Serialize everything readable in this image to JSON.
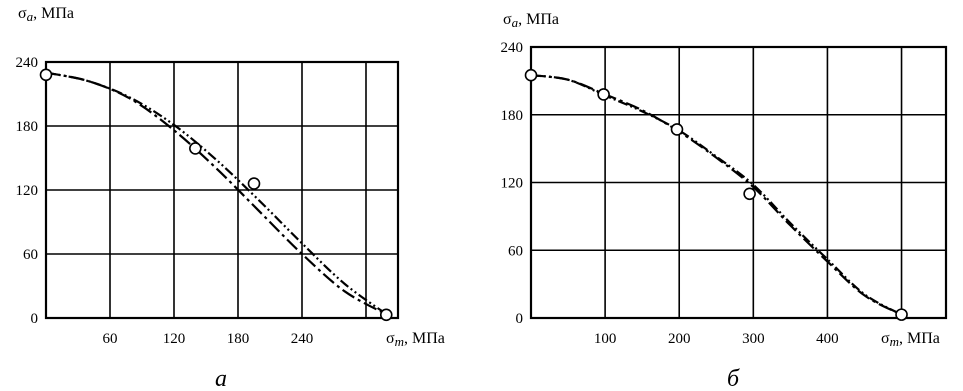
{
  "chart_data": [
    {
      "type": "line",
      "panel_label": "а",
      "ylabel_main": "σ",
      "ylabel_sub": "a",
      "ylabel_unit": ", МПа",
      "xlabel_main": "σ",
      "xlabel_sub": "m",
      "xlabel_unit": ", МПа",
      "xlim": [
        0,
        330
      ],
      "ylim": [
        0,
        240
      ],
      "x_ticks": [
        60,
        120,
        180,
        240
      ],
      "x_tick_labels": [
        "60",
        "120",
        "180",
        "240"
      ],
      "x_grid": [
        60,
        120,
        180,
        240,
        300
      ],
      "y_ticks": [
        0,
        60,
        120,
        180,
        240
      ],
      "y_tick_labels": [
        "0",
        "60",
        "120",
        "180",
        "240"
      ],
      "grid": true,
      "series": [
        {
          "style": "dash-dot",
          "x": [
            0,
            40,
            80,
            120,
            160,
            200,
            240,
            280,
            320
          ],
          "y": [
            230,
            222,
            205,
            176,
            140,
            100,
            60,
            25,
            3
          ]
        },
        {
          "style": "dash-dot-dot",
          "x": [
            0,
            40,
            80,
            120,
            160,
            200,
            240,
            280,
            320
          ],
          "y": [
            230,
            222,
            206,
            181,
            148,
            110,
            70,
            32,
            3
          ]
        }
      ],
      "points": [
        {
          "x": 0,
          "y": 228
        },
        {
          "x": 140,
          "y": 159
        },
        {
          "x": 195,
          "y": 126
        },
        {
          "x": 319,
          "y": 3
        }
      ]
    },
    {
      "type": "line",
      "panel_label": "б",
      "ylabel_main": "σ",
      "ylabel_sub": "a",
      "ylabel_unit": ", МПа",
      "xlabel_main": "σ",
      "xlabel_sub": "m",
      "xlabel_unit": ", МПа",
      "xlim": [
        0,
        560
      ],
      "ylim": [
        0,
        240
      ],
      "x_ticks": [
        100,
        200,
        300,
        400
      ],
      "x_tick_labels": [
        "100",
        "200",
        "300",
        "400"
      ],
      "x_grid": [
        100,
        200,
        300,
        400,
        500
      ],
      "y_ticks": [
        0,
        60,
        120,
        180,
        240
      ],
      "y_tick_labels": [
        "0",
        "60",
        "120",
        "180",
        "240"
      ],
      "grid": true,
      "series": [
        {
          "style": "dash-dot",
          "x": [
            0,
            50,
            100,
            150,
            200,
            250,
            300,
            350,
            400,
            450,
            500
          ],
          "y": [
            215,
            211,
            198,
            184,
            165,
            142,
            116,
            82,
            50,
            20,
            3
          ]
        },
        {
          "style": "dash-dot-dot",
          "x": [
            0,
            50,
            100,
            150,
            200,
            250,
            300,
            350,
            400,
            450,
            500
          ],
          "y": [
            215,
            211,
            197,
            183,
            166,
            143,
            118,
            84,
            52,
            21,
            3
          ]
        }
      ],
      "points": [
        {
          "x": 0,
          "y": 215
        },
        {
          "x": 98,
          "y": 198
        },
        {
          "x": 197,
          "y": 167
        },
        {
          "x": 295,
          "y": 110
        },
        {
          "x": 500,
          "y": 3
        }
      ]
    }
  ]
}
